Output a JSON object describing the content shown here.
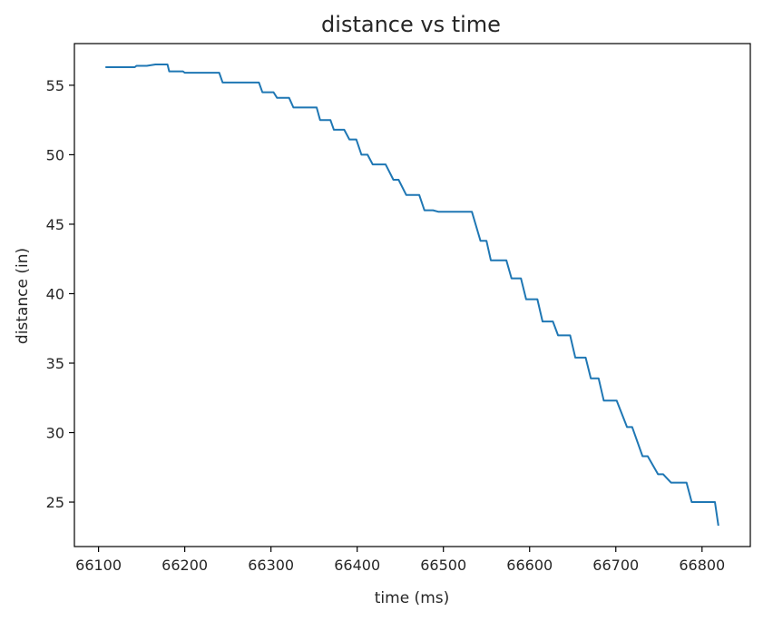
{
  "chart_data": {
    "type": "line",
    "title": "distance vs time",
    "xlabel": "time (ms)",
    "ylabel": "distance (in)",
    "xlim": [
      66072,
      66856
    ],
    "ylim": [
      21.8,
      58.0
    ],
    "xticks": [
      66100,
      66200,
      66300,
      66400,
      66500,
      66600,
      66700,
      66800
    ],
    "yticks": [
      25,
      30,
      35,
      40,
      45,
      50,
      55
    ],
    "grid": false,
    "legend": "none",
    "series": [
      {
        "color": "#1f77b4",
        "x": [
          66108,
          66128,
          66142,
          66144,
          66156,
          66166,
          66168,
          66180,
          66182,
          66198,
          66200,
          66220,
          66240,
          66244,
          66286,
          66290,
          66303,
          66307,
          66321,
          66326,
          66341,
          66353,
          66357,
          66369,
          66373,
          66379,
          66385,
          66391,
          66399,
          66405,
          66412,
          66418,
          66427,
          66433,
          66442,
          66448,
          66457,
          66463,
          66472,
          66478,
          66488,
          66494,
          66510,
          66533,
          66543,
          66550,
          66555,
          66561,
          66573,
          66579,
          66590,
          66596,
          66609,
          66615,
          66627,
          66633,
          66647,
          66653,
          66665,
          66671,
          66680,
          66686,
          66695,
          66701,
          66713,
          66719,
          66731,
          66737,
          66749,
          66755,
          66764,
          66770,
          66782,
          66788,
          66800,
          66806,
          66815,
          66819
        ],
        "y": [
          56.3,
          56.3,
          56.3,
          56.4,
          56.4,
          56.5,
          56.5,
          56.5,
          56.0,
          56.0,
          55.9,
          55.9,
          55.9,
          55.2,
          55.2,
          54.5,
          54.5,
          54.1,
          54.1,
          53.4,
          53.4,
          53.4,
          52.5,
          52.5,
          51.8,
          51.8,
          51.8,
          51.1,
          51.1,
          50.0,
          50.0,
          49.3,
          49.3,
          49.3,
          48.2,
          48.2,
          47.1,
          47.1,
          47.1,
          46.0,
          46.0,
          45.9,
          45.9,
          45.9,
          43.8,
          43.8,
          42.4,
          42.4,
          42.4,
          41.1,
          41.1,
          39.6,
          39.6,
          38.0,
          38.0,
          37.0,
          37.0,
          35.4,
          35.4,
          33.9,
          33.9,
          32.3,
          32.3,
          32.3,
          30.4,
          30.4,
          28.3,
          28.3,
          27.0,
          27.0,
          26.4,
          26.4,
          26.4,
          25.0,
          25.0,
          25.0,
          25.0,
          23.3
        ]
      }
    ]
  }
}
